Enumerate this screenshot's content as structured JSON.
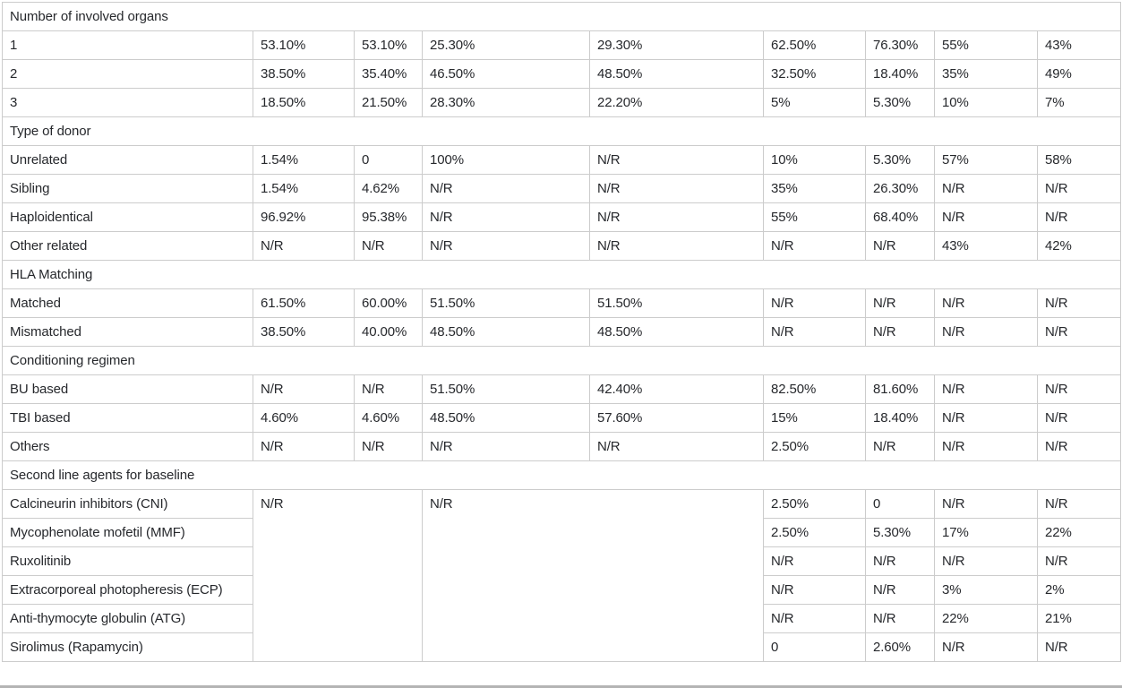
{
  "table": {
    "na_text": "N/R",
    "data_column_count": 8,
    "sections": [
      {
        "header": "Number of involved organs",
        "rows": [
          {
            "label": "1",
            "values": [
              "53.10%",
              "53.10%",
              "25.30%",
              "29.30%",
              "62.50%",
              "76.30%",
              "55%",
              "43%"
            ]
          },
          {
            "label": "2",
            "values": [
              "38.50%",
              "35.40%",
              "46.50%",
              "48.50%",
              "32.50%",
              "18.40%",
              "35%",
              "49%"
            ]
          },
          {
            "label": "3",
            "values": [
              "18.50%",
              "21.50%",
              "28.30%",
              "22.20%",
              "5%",
              "5.30%",
              "10%",
              "7%"
            ]
          }
        ]
      },
      {
        "header": "Type of donor",
        "rows": [
          {
            "label": "Unrelated",
            "values": [
              "1.54%",
              "0",
              "100%",
              "N/R",
              "10%",
              "5.30%",
              "57%",
              "58%"
            ]
          },
          {
            "label": "Sibling",
            "values": [
              "1.54%",
              "4.62%",
              "N/R",
              "N/R",
              "35%",
              "26.30%",
              "N/R",
              "N/R"
            ]
          },
          {
            "label": "Haploidentical",
            "values": [
              "96.92%",
              "95.38%",
              "N/R",
              "N/R",
              "55%",
              "68.40%",
              "N/R",
              "N/R"
            ]
          },
          {
            "label": "Other related",
            "values": [
              "N/R",
              "N/R",
              "N/R",
              "N/R",
              "N/R",
              "N/R",
              "43%",
              "42%"
            ]
          }
        ]
      },
      {
        "header": "HLA Matching",
        "rows": [
          {
            "label": "Matched",
            "values": [
              "61.50%",
              "60.00%",
              "51.50%",
              "51.50%",
              "N/R",
              "N/R",
              "N/R",
              "N/R"
            ]
          },
          {
            "label": "Mismatched",
            "values": [
              "38.50%",
              "40.00%",
              "48.50%",
              "48.50%",
              "N/R",
              "N/R",
              "N/R",
              "N/R"
            ]
          }
        ]
      },
      {
        "header": "Conditioning regimen",
        "rows": [
          {
            "label": "BU based",
            "values": [
              "N/R",
              "N/R",
              "51.50%",
              "42.40%",
              "82.50%",
              "81.60%",
              "N/R",
              "N/R"
            ]
          },
          {
            "label": "TBI based",
            "values": [
              "4.60%",
              "4.60%",
              "48.50%",
              "57.60%",
              "15%",
              "18.40%",
              "N/R",
              "N/R"
            ]
          },
          {
            "label": "Others",
            "values": [
              "N/R",
              "N/R",
              "N/R",
              "N/R",
              "2.50%",
              "N/R",
              "N/R",
              "N/R"
            ]
          }
        ]
      },
      {
        "header": "Second line agents for baseline",
        "merged_cells": [
          {
            "value": "N/R",
            "colspan": 2,
            "rowspan": 6
          },
          {
            "value": "N/R",
            "colspan": 2,
            "rowspan": 6
          }
        ],
        "rows": [
          {
            "label": "Calcineurin inhibitors (CNI)",
            "values": [
              "2.50%",
              "0",
              "N/R",
              "N/R"
            ]
          },
          {
            "label": "Mycophenolate mofetil (MMF)",
            "values": [
              "2.50%",
              "5.30%",
              "17%",
              "22%"
            ]
          },
          {
            "label": "Ruxolitinib",
            "values": [
              "N/R",
              "N/R",
              "N/R",
              "N/R"
            ]
          },
          {
            "label": "Extracorporeal photopheresis (ECP)",
            "values": [
              "N/R",
              "N/R",
              "3%",
              "2%"
            ]
          },
          {
            "label": "Anti-thymocyte globulin (ATG)",
            "values": [
              "N/R",
              "N/R",
              "22%",
              "21%"
            ]
          },
          {
            "label": "Sirolimus (Rapamycin)",
            "values": [
              "0",
              "2.60%",
              "N/R",
              "N/R"
            ]
          }
        ]
      }
    ]
  }
}
